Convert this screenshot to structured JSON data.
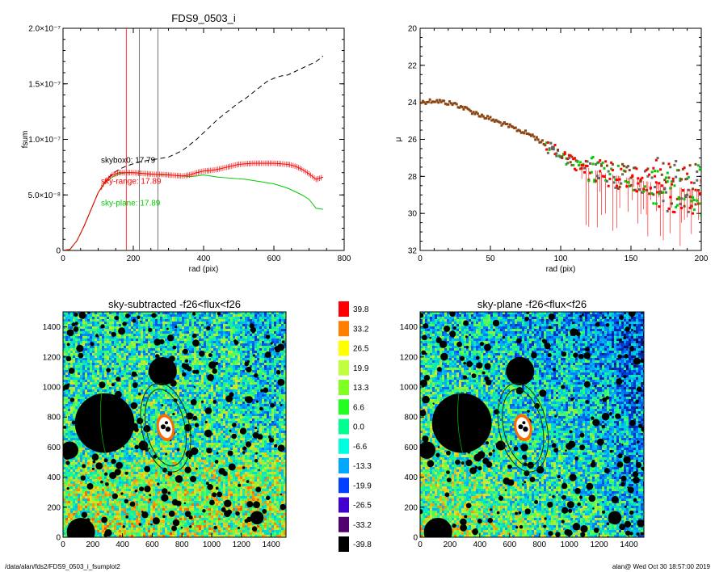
{
  "footer": {
    "path": "/data/alan/fds2/FDS9_0503_i_fsumplot2",
    "user_date": "alan@  Wed Oct 30 18:57:00 2019"
  },
  "chart_data": [
    {
      "type": "line",
      "title": "FDS9_0503_i",
      "xlabel": "rad (pix)",
      "ylabel": "fsum",
      "xlim": [
        0,
        800
      ],
      "ylim": [
        0,
        2e-07
      ],
      "xticks": [
        "0",
        "200",
        "400",
        "600",
        "800"
      ],
      "yticks": [
        {
          "value": 0,
          "label": "0"
        },
        {
          "value": 5e-08,
          "label": "5.0×10⁻⁸"
        },
        {
          "value": 1e-07,
          "label": "1.0×10⁻⁷"
        },
        {
          "value": 1.5e-07,
          "label": "1.5×10⁻⁷"
        },
        {
          "value": 2e-07,
          "label": "2.0×10⁻⁷"
        }
      ],
      "vlines": [
        {
          "x": 180,
          "color": "#ff0000"
        },
        {
          "x": 217,
          "color": "#555555"
        },
        {
          "x": 270,
          "color": "#555555"
        }
      ],
      "annotations": [
        {
          "text": "skybox0: 17.79",
          "color": "#000000",
          "x": 108,
          "y": 7.9e-08
        },
        {
          "text": "sky-range: 17.89",
          "color": "#ff0000",
          "x": 108,
          "y": 6e-08
        },
        {
          "text": "sky-plane: 17.89",
          "color": "#00cc00",
          "x": 108,
          "y": 4.05e-08
        }
      ],
      "series": [
        {
          "style": "dashed",
          "color": "#000000",
          "x": [
            0,
            20,
            40,
            60,
            80,
            100,
            120,
            140,
            160,
            180,
            200,
            220,
            240,
            260,
            280,
            300,
            320,
            340,
            360,
            380,
            400,
            420,
            440,
            460,
            480,
            500,
            520,
            540,
            560,
            580,
            600,
            620,
            640,
            660,
            680,
            700,
            720,
            740
          ],
          "y": [
            0,
            1e-09,
            9e-09,
            2.2e-08,
            3.7e-08,
            5.2e-08,
            6.2e-08,
            6.9e-08,
            7.3e-08,
            7.6e-08,
            7.8e-08,
            8e-08,
            8.1e-08,
            8.2e-08,
            8.3e-08,
            8.4e-08,
            8.7e-08,
            9e-08,
            9.5e-08,
            1e-07,
            1.06e-07,
            1.12e-07,
            1.18e-07,
            1.23e-07,
            1.28e-07,
            1.33e-07,
            1.37e-07,
            1.42e-07,
            1.47e-07,
            1.52e-07,
            1.55e-07,
            1.57e-07,
            1.58e-07,
            1.61e-07,
            1.64e-07,
            1.67e-07,
            1.7e-07,
            1.75e-07
          ]
        },
        {
          "style": "solid",
          "color": "#00cc00",
          "x": [
            0,
            20,
            40,
            60,
            80,
            100,
            120,
            140,
            160,
            180,
            200,
            220,
            240,
            260,
            280,
            300,
            320,
            340,
            360,
            380,
            400,
            420,
            440,
            460,
            480,
            500,
            520,
            540,
            560,
            580,
            600,
            620,
            640,
            660,
            680,
            700,
            720,
            740
          ],
          "y": [
            0,
            1e-09,
            9e-09,
            2.2e-08,
            3.7e-08,
            5.2e-08,
            6.1e-08,
            6.6e-08,
            6.9e-08,
            7e-08,
            7e-08,
            6.95e-08,
            6.9e-08,
            6.85e-08,
            6.8e-08,
            6.8e-08,
            6.75e-08,
            6.7e-08,
            6.65e-08,
            6.7e-08,
            6.8e-08,
            6.7e-08,
            6.6e-08,
            6.55e-08,
            6.5e-08,
            6.45e-08,
            6.4e-08,
            6.3e-08,
            6.2e-08,
            6.1e-08,
            6e-08,
            5.8e-08,
            5.6e-08,
            5.3e-08,
            5e-08,
            4.6e-08,
            3.8e-08,
            3.7e-08
          ]
        },
        {
          "style": "solid-errorbars",
          "color": "#ff0000",
          "x": [
            0,
            20,
            40,
            60,
            80,
            100,
            120,
            140,
            160,
            180,
            200,
            220,
            240,
            260,
            280,
            300,
            320,
            340,
            360,
            380,
            400,
            420,
            440,
            460,
            480,
            500,
            520,
            540,
            560,
            580,
            600,
            620,
            640,
            660,
            680,
            700,
            720,
            740
          ],
          "y": [
            0,
            1e-09,
            9e-09,
            2.2e-08,
            3.7e-08,
            5.2e-08,
            6.2e-08,
            6.8e-08,
            7e-08,
            7e-08,
            7e-08,
            6.95e-08,
            6.9e-08,
            6.85e-08,
            6.85e-08,
            6.8e-08,
            6.75e-08,
            6.7e-08,
            6.8e-08,
            7e-08,
            7.15e-08,
            7.2e-08,
            7.3e-08,
            7.45e-08,
            7.6e-08,
            7.75e-08,
            7.8e-08,
            7.85e-08,
            7.85e-08,
            7.85e-08,
            7.85e-08,
            7.8e-08,
            7.75e-08,
            7.6e-08,
            7.3e-08,
            6.9e-08,
            6.4e-08,
            6.6e-08
          ],
          "err": 2.5e-09
        }
      ]
    },
    {
      "type": "scatter",
      "title": "",
      "xlabel": "rad (pix)",
      "ylabel": "μ",
      "xlim": [
        0,
        200
      ],
      "ylim": [
        32,
        20
      ],
      "xticks": [
        "0",
        "50",
        "100",
        "150",
        "200"
      ],
      "yticks": [
        "20",
        "22",
        "24",
        "26",
        "28",
        "30",
        "32"
      ],
      "profile_knots": {
        "x": [
          0,
          10,
          25,
          40,
          60,
          80,
          95,
          110,
          130,
          150,
          170,
          185,
          200
        ],
        "y": [
          24.0,
          23.9,
          24.1,
          24.6,
          25.2,
          25.8,
          26.6,
          27.3,
          27.8,
          28.1,
          28.4,
          28.6,
          28.8
        ]
      },
      "err_extent_mag": [
        0.3,
        3.5
      ],
      "series_colors": [
        "#8b4513",
        "#ff0000",
        "#00cc00",
        "#666666"
      ]
    },
    {
      "type": "heatmap",
      "title": "sky-subtracted -f26<flux<f26",
      "xlim": [
        0,
        1500
      ],
      "ylim": [
        0,
        1500
      ],
      "xticks": [
        "0",
        "200",
        "400",
        "600",
        "800",
        "1000",
        "1200",
        "1400"
      ],
      "yticks": [
        "0",
        "200",
        "400",
        "600",
        "800",
        "1000",
        "1200",
        "1400"
      ],
      "gradient": "sky-subtracted",
      "masks": [
        {
          "x": 280,
          "y": 760,
          "r": 200
        },
        {
          "x": 670,
          "y": 1105,
          "r": 95
        },
        {
          "x": 120,
          "y": 35,
          "r": 95
        },
        {
          "x": 45,
          "y": 580,
          "r": 58
        },
        {
          "x": 1305,
          "y": 130,
          "r": 45
        },
        {
          "x": 540,
          "y": 610,
          "r": 32
        }
      ],
      "galaxy": {
        "x": 690,
        "y": 730,
        "ellipses": [
          {
            "a": 300,
            "b": 160
          },
          {
            "a": 260,
            "b": 130
          }
        ],
        "angle": -12
      }
    },
    {
      "type": "heatmap",
      "title": "sky-plane -f26<flux<f26",
      "xlim": [
        0,
        1500
      ],
      "ylim": [
        0,
        1500
      ],
      "xticks": [
        "0",
        "200",
        "400",
        "600",
        "800",
        "1000",
        "1200",
        "1400"
      ],
      "yticks": [
        "0",
        "200",
        "400",
        "600",
        "800",
        "1000",
        "1200",
        "1400"
      ],
      "gradient": "sky-plane",
      "masks": [
        {
          "x": 280,
          "y": 760,
          "r": 200
        },
        {
          "x": 670,
          "y": 1105,
          "r": 95
        },
        {
          "x": 120,
          "y": 35,
          "r": 95
        },
        {
          "x": 45,
          "y": 580,
          "r": 58
        },
        {
          "x": 1305,
          "y": 130,
          "r": 45
        },
        {
          "x": 540,
          "y": 610,
          "r": 32
        }
      ],
      "galaxy": {
        "x": 690,
        "y": 730,
        "ellipses": [
          {
            "a": 300,
            "b": 160
          },
          {
            "a": 260,
            "b": 130
          }
        ],
        "angle": -12
      }
    },
    {
      "type": "colorbar",
      "levels": [
        {
          "label": "39.8",
          "color": "#ff0000"
        },
        {
          "label": "33.2",
          "color": "#ff8000"
        },
        {
          "label": "26.5",
          "color": "#ffff00"
        },
        {
          "label": "19.9",
          "color": "#c0ff40"
        },
        {
          "label": "13.3",
          "color": "#80ff20"
        },
        {
          "label": "6.6",
          "color": "#20ff20"
        },
        {
          "label": "0.0",
          "color": "#00ff90"
        },
        {
          "label": "-6.6",
          "color": "#00ffe0"
        },
        {
          "label": "-13.3",
          "color": "#00a8ff"
        },
        {
          "label": "-19.9",
          "color": "#0040ff"
        },
        {
          "label": "-26.5",
          "color": "#4000d0"
        },
        {
          "label": "-33.2",
          "color": "#500070"
        },
        {
          "label": "-39.8",
          "color": "#000000"
        }
      ]
    }
  ]
}
